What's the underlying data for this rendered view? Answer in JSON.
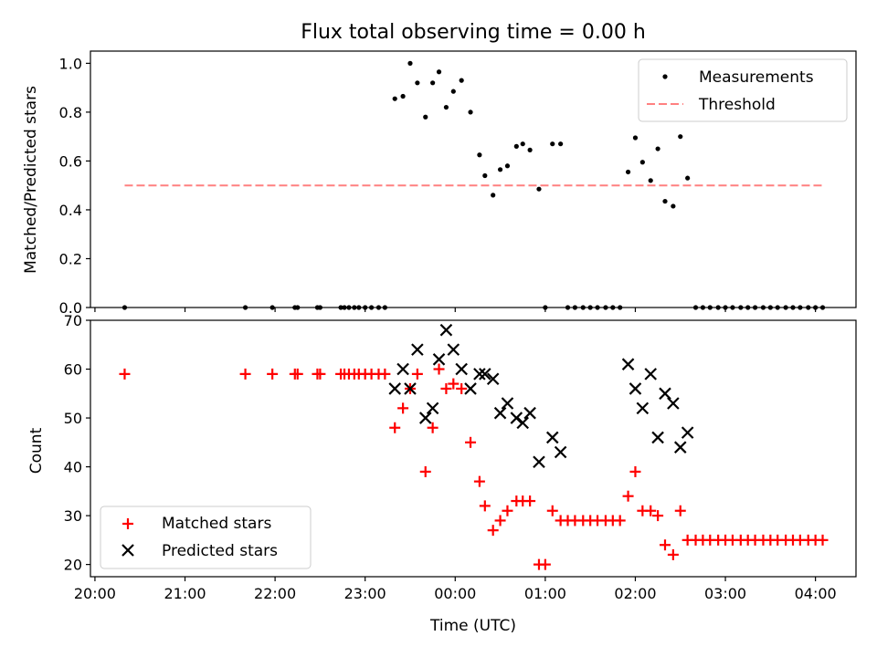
{
  "chart_data": [
    {
      "type": "scatter",
      "title": "Flux total observing time = 0.00 h",
      "xlabel": "",
      "ylabel": "Matched/Predicted stars",
      "xlim": [
        -0.05,
        8.45
      ],
      "ylim": [
        0,
        1.05
      ],
      "yticks": [
        0.0,
        0.2,
        0.4,
        0.6,
        0.8,
        1.0
      ],
      "ytick_labels": [
        "0.0",
        "0.2",
        "0.4",
        "0.6",
        "0.8",
        "1.0"
      ],
      "xticks": [
        0,
        1,
        2,
        3,
        4,
        5,
        6,
        7,
        8
      ],
      "legend_loc": "top-right",
      "series": [
        {
          "name": "Measurements",
          "kind": "scatter",
          "marker": "dot",
          "color": "#000000",
          "x": [
            0.33,
            1.67,
            1.97,
            2.22,
            2.25,
            2.47,
            2.5,
            2.73,
            2.77,
            2.82,
            2.88,
            2.93,
            3.0,
            3.07,
            3.15,
            3.22,
            3.33,
            3.42,
            3.5,
            3.58,
            3.67,
            3.75,
            3.82,
            3.9,
            3.98,
            4.07,
            4.17,
            4.27,
            4.33,
            4.42,
            4.5,
            4.58,
            4.68,
            4.75,
            4.83,
            4.93,
            5.0,
            5.08,
            5.17,
            5.25,
            5.33,
            5.42,
            5.5,
            5.58,
            5.67,
            5.75,
            5.83,
            5.92,
            6.0,
            6.08,
            6.17,
            6.25,
            6.33,
            6.42,
            6.5,
            6.58,
            6.67,
            6.75,
            6.83,
            6.92,
            7.0,
            7.08,
            7.17,
            7.25,
            7.33,
            7.42,
            7.5,
            7.58,
            7.67,
            7.75,
            7.83,
            7.92,
            8.0,
            8.08
          ],
          "y": [
            0,
            0,
            0,
            0,
            0,
            0,
            0,
            0,
            0,
            0,
            0,
            0,
            0,
            0,
            0,
            0,
            0.855,
            0.865,
            1.0,
            0.92,
            0.78,
            0.92,
            0.965,
            0.82,
            0.885,
            0.93,
            0.8,
            0.625,
            0.54,
            0.46,
            0.565,
            0.58,
            0.66,
            0.67,
            0.645,
            0.485,
            0,
            0.67,
            0.67,
            0,
            0,
            0,
            0,
            0,
            0,
            0,
            0,
            0.555,
            0.695,
            0.595,
            0.52,
            0.65,
            0.435,
            0.415,
            0.7,
            0.53,
            0,
            0,
            0,
            0,
            0,
            0,
            0,
            0,
            0,
            0,
            0,
            0,
            0,
            0,
            0,
            0,
            0,
            0
          ]
        },
        {
          "name": "Threshold",
          "kind": "line",
          "style": "dashed",
          "color": "#ff8080",
          "x": [
            0.33,
            8.08
          ],
          "y": [
            0.5,
            0.5
          ]
        }
      ]
    },
    {
      "type": "scatter",
      "title": "",
      "xlabel": "Time (UTC)",
      "ylabel": "Count",
      "xlim": [
        -0.05,
        8.45
      ],
      "ylim": [
        17.5,
        70
      ],
      "yticks": [
        20,
        30,
        40,
        50,
        60,
        70
      ],
      "ytick_labels": [
        "20",
        "30",
        "40",
        "50",
        "60",
        "70"
      ],
      "xticks": [
        0,
        1,
        2,
        3,
        4,
        5,
        6,
        7,
        8
      ],
      "xtick_labels": [
        "20:00",
        "21:00",
        "22:00",
        "23:00",
        "00:00",
        "01:00",
        "02:00",
        "03:00",
        "04:00"
      ],
      "legend_loc": "bottom-left",
      "series": [
        {
          "name": "Matched stars",
          "kind": "scatter",
          "marker": "plus",
          "color": "#ff0000",
          "x": [
            0.33,
            1.67,
            1.97,
            2.22,
            2.25,
            2.47,
            2.5,
            2.73,
            2.77,
            2.82,
            2.88,
            2.93,
            3.0,
            3.07,
            3.15,
            3.22,
            3.33,
            3.42,
            3.5,
            3.58,
            3.67,
            3.75,
            3.82,
            3.9,
            3.98,
            4.07,
            4.17,
            4.27,
            4.33,
            4.42,
            4.5,
            4.58,
            4.68,
            4.75,
            4.83,
            4.93,
            5.0,
            5.08,
            5.17,
            5.25,
            5.33,
            5.42,
            5.5,
            5.58,
            5.67,
            5.75,
            5.83,
            5.92,
            6.0,
            6.08,
            6.17,
            6.25,
            6.33,
            6.42,
            6.5,
            6.58,
            6.67,
            6.75,
            6.83,
            6.92,
            7.0,
            7.08,
            7.17,
            7.25,
            7.33,
            7.42,
            7.5,
            7.58,
            7.67,
            7.75,
            7.83,
            7.92,
            8.0,
            8.08
          ],
          "y": [
            59,
            59,
            59,
            59,
            59,
            59,
            59,
            59,
            59,
            59,
            59,
            59,
            59,
            59,
            59,
            59,
            48,
            52,
            56,
            59,
            39,
            48,
            60,
            56,
            57,
            56,
            45,
            37,
            32,
            27,
            29,
            31,
            33,
            33,
            33,
            20,
            20,
            31,
            29,
            29,
            29,
            29,
            29,
            29,
            29,
            29,
            29,
            34,
            39,
            31,
            31,
            30,
            24,
            22,
            31,
            25,
            25,
            25,
            25,
            25,
            25,
            25,
            25,
            25,
            25,
            25,
            25,
            25,
            25,
            25,
            25,
            25,
            25,
            25
          ]
        },
        {
          "name": "Predicted stars",
          "kind": "scatter",
          "marker": "x",
          "color": "#000000",
          "x": [
            3.33,
            3.42,
            3.5,
            3.58,
            3.67,
            3.75,
            3.82,
            3.9,
            3.98,
            4.07,
            4.17,
            4.27,
            4.33,
            4.42,
            4.5,
            4.58,
            4.68,
            4.75,
            4.83,
            4.93,
            5.08,
            5.17,
            5.92,
            6.0,
            6.08,
            6.17,
            6.25,
            6.33,
            6.42,
            6.5,
            6.58
          ],
          "y": [
            56,
            60,
            56,
            64,
            50,
            52,
            62,
            68,
            64,
            60,
            56,
            59,
            59,
            58,
            51,
            53,
            50,
            49,
            51,
            41,
            46,
            43,
            61,
            56,
            52,
            59,
            46,
            55,
            53,
            44,
            47
          ]
        }
      ]
    }
  ]
}
